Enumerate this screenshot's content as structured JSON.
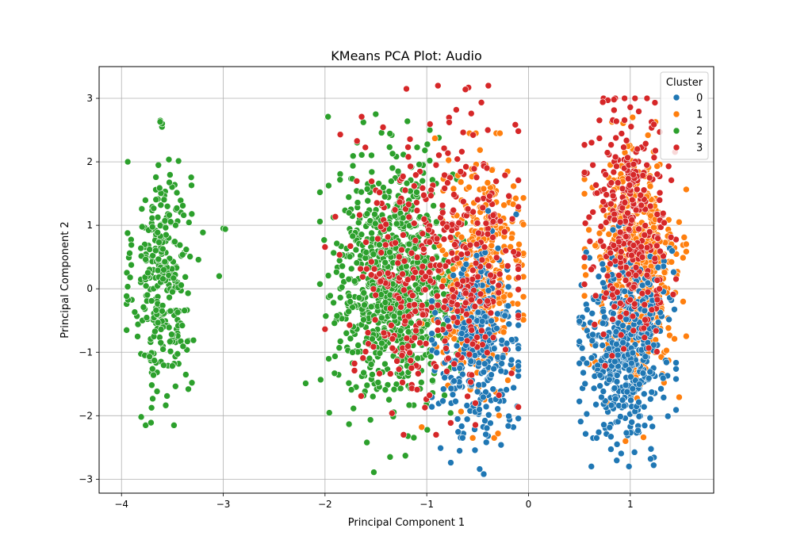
{
  "chart_data": {
    "type": "scatter",
    "title": "KMeans PCA Plot: Audio",
    "xlabel": "Principal Component 1",
    "ylabel": "Principal Component 2",
    "xlim": [
      -4.22,
      1.82
    ],
    "ylim": [
      -3.22,
      3.5
    ],
    "xticks": [
      -4,
      -3,
      -2,
      -1,
      0,
      1
    ],
    "yticks": [
      -3,
      -2,
      -1,
      0,
      1,
      2,
      3
    ],
    "xtick_labels": [
      "−4",
      "−3",
      "−2",
      "−1",
      "0",
      "1"
    ],
    "ytick_labels": [
      "−3",
      "−2",
      "−1",
      "0",
      "1",
      "2",
      "3"
    ],
    "grid": true,
    "legend": {
      "title": "Cluster",
      "placement": "top-right",
      "entries": [
        "0",
        "1",
        "2",
        "3"
      ]
    },
    "series": [
      {
        "name": "0",
        "color": "#1f77b4",
        "regions": [
          {
            "x_range": [
              -0.95,
              -0.1
            ],
            "y_range": [
              -2.9,
              1.3
            ],
            "x_center": -0.5,
            "y_center": -0.9,
            "x_sd": 0.2,
            "y_sd": 0.75,
            "count": 320
          },
          {
            "x_range": [
              0.5,
              1.45
            ],
            "y_range": [
              -2.8,
              1.3
            ],
            "x_center": 0.95,
            "y_center": -0.9,
            "x_sd": 0.2,
            "y_sd": 0.75,
            "count": 480
          }
        ],
        "points": [
          [
            -0.44,
            -2.92
          ],
          [
            -0.48,
            -2.84
          ],
          [
            1.23,
            -2.78
          ],
          [
            1.2,
            -2.68
          ],
          [
            -0.27,
            -2.46
          ],
          [
            0.87,
            -2.45
          ],
          [
            0.69,
            -2.26
          ],
          [
            0.81,
            -2.33
          ]
        ]
      },
      {
        "name": "1",
        "color": "#ff7f0e",
        "regions": [
          {
            "x_range": [
              -1.05,
              -0.05
            ],
            "y_range": [
              -2.35,
              2.45
            ],
            "x_center": -0.45,
            "y_center": 0.2,
            "x_sd": 0.2,
            "y_sd": 0.85,
            "count": 380
          },
          {
            "x_range": [
              0.55,
              1.55
            ],
            "y_range": [
              -2.4,
              2.7
            ],
            "x_center": 1.05,
            "y_center": 0.3,
            "x_sd": 0.2,
            "y_sd": 0.9,
            "count": 560
          }
        ],
        "points": [
          [
            -0.58,
            2.45
          ],
          [
            -0.3,
            -2.28
          ],
          [
            1.13,
            -2.34
          ],
          [
            1.53,
            0.81
          ],
          [
            1.48,
            1.05
          ],
          [
            0.82,
            2.63
          ],
          [
            -0.92,
            2.37
          ]
        ]
      },
      {
        "name": "2",
        "color": "#2ca02c",
        "regions": [
          {
            "x_range": [
              -3.95,
              -3.2
            ],
            "y_range": [
              -2.15,
              2.65
            ],
            "x_center": -3.6,
            "y_center": 0.15,
            "x_sd": 0.14,
            "y_sd": 0.95,
            "count": 320
          },
          {
            "x_range": [
              -2.05,
              -0.5
            ],
            "y_range": [
              -2.65,
              2.75
            ],
            "x_center": -1.3,
            "y_center": 0.1,
            "x_sd": 0.3,
            "y_sd": 0.9,
            "count": 900
          }
        ],
        "points": [
          [
            -3.62,
            2.63
          ],
          [
            -3.92,
            0.56
          ],
          [
            -3.71,
            -2.11
          ],
          [
            -3.0,
            0.95
          ],
          [
            -2.98,
            0.94
          ],
          [
            -3.04,
            0.2
          ],
          [
            -2.19,
            -1.49
          ],
          [
            -1.97,
            2.71
          ],
          [
            -1.52,
            -2.89
          ],
          [
            -0.97,
            2.5
          ],
          [
            -1.21,
            -2.63
          ]
        ]
      },
      {
        "name": "3",
        "color": "#d62728",
        "regions": [
          {
            "x_range": [
              -2.0,
              -0.1
            ],
            "y_range": [
              -2.3,
              3.2
            ],
            "x_center": -0.9,
            "y_center": 0.3,
            "x_sd": 0.4,
            "y_sd": 1.0,
            "count": 420
          },
          {
            "x_range": [
              0.55,
              1.45
            ],
            "y_range": [
              -1.5,
              3.0
            ],
            "x_center": 1.0,
            "y_center": 1.1,
            "x_sd": 0.2,
            "y_sd": 0.85,
            "count": 300
          }
        ],
        "points": [
          [
            -0.89,
            3.2
          ],
          [
            -0.59,
            3.17
          ],
          [
            -1.2,
            3.15
          ],
          [
            -0.71,
            2.82
          ],
          [
            -1.64,
            2.71
          ],
          [
            -0.4,
            2.5
          ],
          [
            -1.85,
            2.43
          ],
          [
            0.78,
            2.97
          ],
          [
            0.84,
            2.98
          ],
          [
            1.0,
            2.86
          ],
          [
            0.73,
            2.94
          ],
          [
            1.29,
            2.47
          ],
          [
            -0.62,
            3.14
          ]
        ]
      }
    ]
  }
}
